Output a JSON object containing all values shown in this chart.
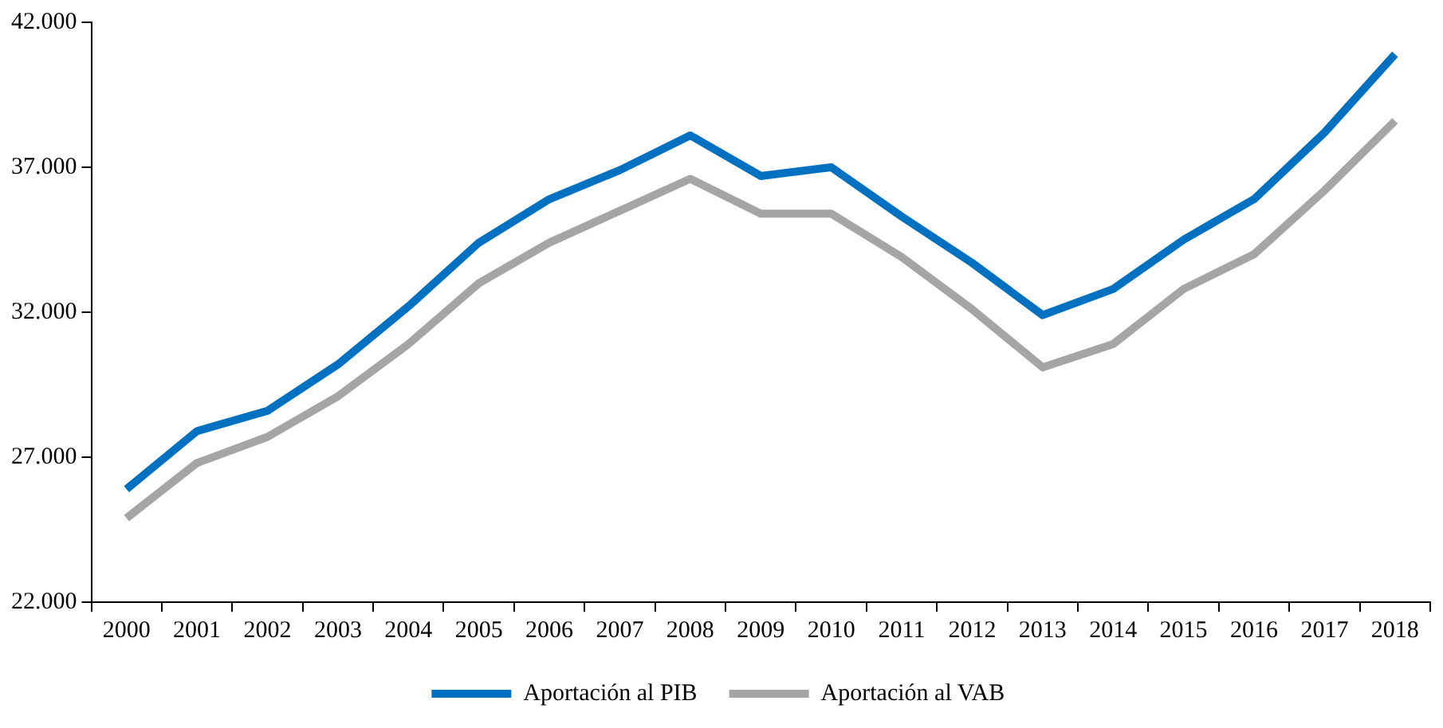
{
  "chart_data": {
    "type": "line",
    "categories": [
      "2000",
      "2001",
      "2002",
      "2003",
      "2004",
      "2005",
      "2006",
      "2007",
      "2008",
      "2009",
      "2010",
      "2011",
      "2012",
      "2013",
      "2014",
      "2015",
      "2016",
      "2017",
      "2018"
    ],
    "series": [
      {
        "name": "Aportación al PIB",
        "color": "#0070c0",
        "values": [
          25900,
          27900,
          28600,
          30200,
          32200,
          34400,
          35900,
          36900,
          38100,
          36700,
          37000,
          35300,
          33700,
          31900,
          32800,
          34500,
          35900,
          38200,
          40900
        ]
      },
      {
        "name": "Aportación al VAB",
        "color": "#a5a5a5",
        "values": [
          24900,
          26800,
          27700,
          29100,
          30900,
          33000,
          34400,
          35500,
          36600,
          35400,
          35400,
          33900,
          32100,
          30100,
          30900,
          32800,
          34000,
          36200,
          38600
        ]
      }
    ],
    "ylim": [
      22000,
      42000
    ],
    "yticks": [
      {
        "value": 22000,
        "label": "22.000"
      },
      {
        "value": 27000,
        "label": "27.000"
      },
      {
        "value": 32000,
        "label": "32.000"
      },
      {
        "value": 37000,
        "label": "37.000"
      },
      {
        "value": 42000,
        "label": "42.000"
      }
    ],
    "grid": false,
    "legend": "bottom",
    "marker": "none",
    "line_style": "solid"
  }
}
